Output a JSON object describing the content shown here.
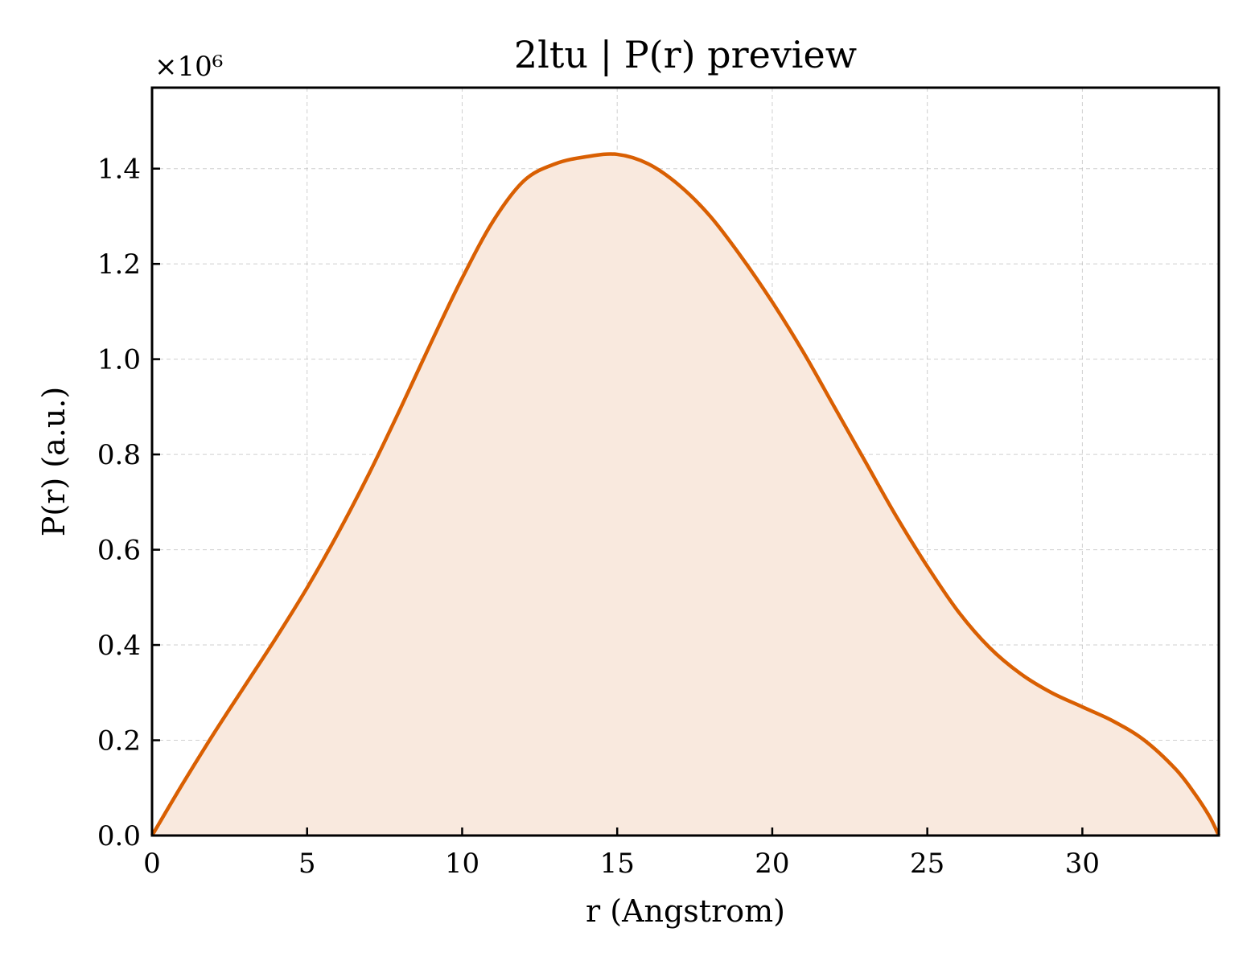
{
  "chart_data": {
    "type": "area",
    "title": "2ltu | P(r) preview",
    "xlabel": "r (Angstrom)",
    "ylabel": "P(r) (a.u.)",
    "y_offset_label": "×10⁶",
    "y_scale": 1000000,
    "xlim": [
      0,
      34.4
    ],
    "ylim": [
      0,
      1.57
    ],
    "xticks": [
      0,
      5,
      10,
      15,
      20,
      25,
      30
    ],
    "yticks": [
      0.0,
      0.2,
      0.4,
      0.6,
      0.8,
      1.0,
      1.2,
      1.4
    ],
    "grid": true,
    "line_color": "#d95f02",
    "fill_color": "#f9e9de",
    "series": [
      {
        "x": [
          0,
          1,
          2,
          3,
          4,
          5,
          6,
          7,
          8,
          9,
          10,
          11,
          12,
          13,
          14,
          15,
          16,
          17,
          18,
          19,
          20,
          21,
          22,
          23,
          24,
          25,
          26,
          27,
          28,
          29,
          30,
          31,
          32,
          33,
          33.6,
          34.1,
          34.4
        ],
        "y": [
          0.0,
          0.11,
          0.215,
          0.315,
          0.415,
          0.52,
          0.635,
          0.76,
          0.895,
          1.035,
          1.17,
          1.29,
          1.375,
          1.41,
          1.425,
          1.43,
          1.41,
          1.365,
          1.3,
          1.215,
          1.12,
          1.015,
          0.9,
          0.785,
          0.67,
          0.565,
          0.47,
          0.395,
          0.34,
          0.3,
          0.27,
          0.24,
          0.2,
          0.14,
          0.09,
          0.04,
          0.0
        ]
      }
    ]
  }
}
